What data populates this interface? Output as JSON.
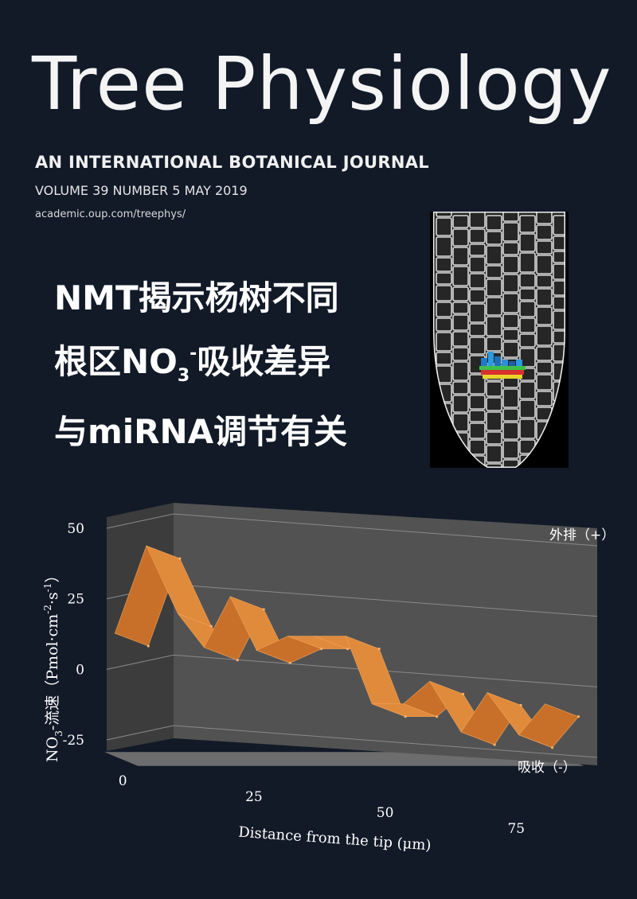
{
  "journal": {
    "title": "Tree Physiology",
    "subtitle": "AN INTERNATIONAL BOTANICAL JOURNAL",
    "issue": "VOLUME 39  NUMBER 5 MAY 2019",
    "url": "academic.oup.com/treephys/"
  },
  "headline": {
    "line1": "NMT揭示杨树不同",
    "line2_pre": "根区NO",
    "line2_sub": "3",
    "line2_sup": "-",
    "line2_post": "吸收差异",
    "line3": "与miRNA调节有关"
  },
  "chart_data": {
    "type": "line",
    "style": "3d-ribbon",
    "xlabel": "Distance from the tip (μm)",
    "ylabel_main": "NO",
    "ylabel_sub": "3",
    "ylabel_rest": "-流速（Pmol·cm",
    "ylabel_sup1": "-2",
    "ylabel_mid": "·s",
    "ylabel_sup2": "-1",
    "ylabel_end": "）",
    "x_ticks": [
      "0",
      "25",
      "50",
      "75"
    ],
    "y_ticks": [
      "50",
      "25",
      "0",
      "-25"
    ],
    "ylim": [
      -25,
      50
    ],
    "xlim": [
      0,
      85
    ],
    "annotation_positive": "外排（+）",
    "annotation_negative": "吸收（-）",
    "ribbon_color": "#e08a3c",
    "x": [
      2,
      8,
      14,
      19,
      24,
      29,
      35,
      40,
      46,
      51,
      57,
      62,
      68,
      73,
      79,
      84
    ],
    "values": [
      13,
      44,
      20,
      8,
      26,
      7,
      12,
      12,
      12,
      -12,
      -12,
      -4,
      -22,
      -8,
      -23,
      -12
    ]
  }
}
